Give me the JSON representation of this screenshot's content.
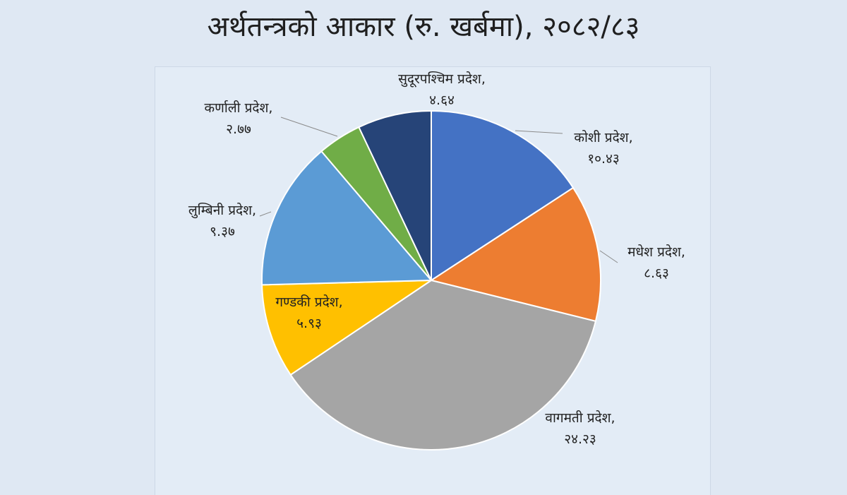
{
  "title": "अर्थतन्त्रको आकार (रु. खर्बमा), २०८२/८३",
  "chart_data": {
    "type": "pie",
    "title": "अर्थतन्त्रको आकार (रु. खर्बमा), २०८२/८३",
    "start_angle_deg": 0,
    "direction": "clockwise",
    "slices": [
      {
        "name": "कोशी प्रदेश",
        "value": 10.43,
        "value_label": "१०.४३",
        "color": "#4472c4"
      },
      {
        "name": "मधेश प्रदेश",
        "value": 8.63,
        "value_label": "८.६३",
        "color": "#ed7d31"
      },
      {
        "name": "वागमती प्रदेश",
        "value": 24.23,
        "value_label": "२४.२३",
        "color": "#a5a5a5"
      },
      {
        "name": "गण्डकी प्रदेश",
        "value": 5.93,
        "value_label": "५.९३",
        "color": "#ffc000"
      },
      {
        "name": "लुम्बिनी प्रदेश",
        "value": 9.37,
        "value_label": "९.३७",
        "color": "#5b9bd5"
      },
      {
        "name": "कर्णाली प्रदेश",
        "value": 2.77,
        "value_label": "२.७७",
        "color": "#70ad47"
      },
      {
        "name": "सुदूरपश्चिम प्रदेश",
        "value": 4.64,
        "value_label": "४.६४",
        "color": "#264478"
      }
    ]
  }
}
